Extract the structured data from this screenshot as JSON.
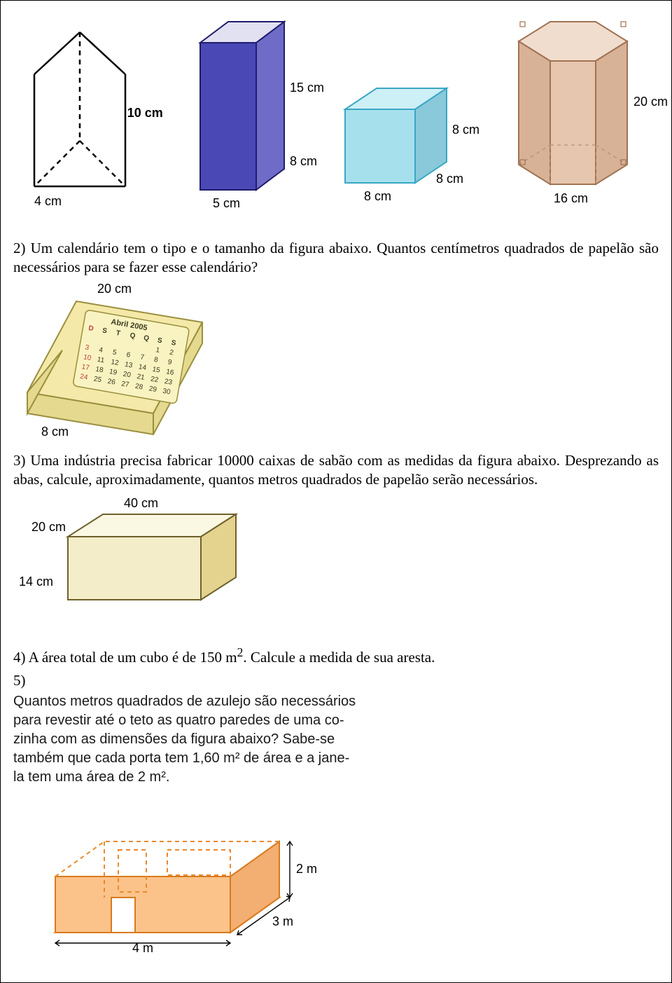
{
  "shapes": {
    "triPrism": {
      "height": "10 cm",
      "base": "4 cm"
    },
    "rectPrism": {
      "height": "15 cm",
      "depth": "8 cm",
      "width": "5 cm",
      "colors": {
        "front": "#4a48b5",
        "side": "#6f6cc8",
        "top": "#e2e1f2",
        "edge": "#1f1d6b"
      }
    },
    "cube": {
      "edge": "8 cm",
      "colors": {
        "front": "#a7e0ed",
        "side": "#89c9d9",
        "top": "#cdeff6",
        "edge": "#3aa7c4"
      }
    },
    "hexPrism": {
      "height": "20 cm",
      "base": "16 cm",
      "colors": {
        "front": "#e6c6ae",
        "side": "#d8b296",
        "top": "#f1ddcd",
        "edge": "#a07253"
      }
    }
  },
  "q2": {
    "text": "2) Um calendário tem o tipo e o tamanho da figura abaixo. Quantos centímetros quadrados de papelão são necessários para se fazer esse calendário?"
  },
  "calendar": {
    "top": "20 cm",
    "base": "8 cm",
    "month": "Abril  2005",
    "days": [
      "D",
      "S",
      "T",
      "Q",
      "Q",
      "S",
      "S"
    ],
    "rows": [
      [
        "",
        "",
        "",
        "",
        "",
        "1",
        "2"
      ],
      [
        "3",
        "4",
        "5",
        "6",
        "7",
        "8",
        "9"
      ],
      [
        "10",
        "11",
        "12",
        "13",
        "14",
        "15",
        "16"
      ],
      [
        "17",
        "18",
        "19",
        "20",
        "21",
        "22",
        "23"
      ],
      [
        "24",
        "25",
        "26",
        "27",
        "28",
        "29",
        "30"
      ]
    ],
    "colors": {
      "paper": "#f4e9a8",
      "shade": "#e4d98f",
      "edge": "#9a8f3e",
      "ink": "#3a3a1e",
      "hl": "#c04040"
    }
  },
  "q3": {
    "text": "3) Uma indústria precisa fabricar 10000 caixas de sabão com as medidas da figura abaixo. Desprezando as abas, calcule, aproximadamente, quantos metros quadrados de papelão serão necessários."
  },
  "box": {
    "w": "40 cm",
    "d": "20 cm",
    "h": "14 cm",
    "colors": {
      "front": "#f3eec9",
      "side": "#e3d38e",
      "top": "#faf7e2",
      "edge": "#6e612c"
    }
  },
  "q4": {
    "pre": "4) A área total de um cubo é de 150 m",
    "sup": "2",
    "post": ". Calcule a medida de sua aresta."
  },
  "q5": {
    "num": "5)",
    "line1": "Quantos metros quadrados de azulejo são necessários",
    "line2": "para revestir até o teto as quatro paredes de uma co-",
    "line3": "zinha com as dimensões da figura abaixo? Sabe-se",
    "line4": "também que cada porta tem 1,60 m² de área e a jane-",
    "line5": "la tem uma área de 2 m²."
  },
  "room": {
    "w": "4 m",
    "d": "3 m",
    "h": "2 m",
    "colors": {
      "wall": "#fbc38a",
      "floor": "#fecfa0",
      "edge": "#d97a1e",
      "dash": "#e98a2e"
    }
  }
}
